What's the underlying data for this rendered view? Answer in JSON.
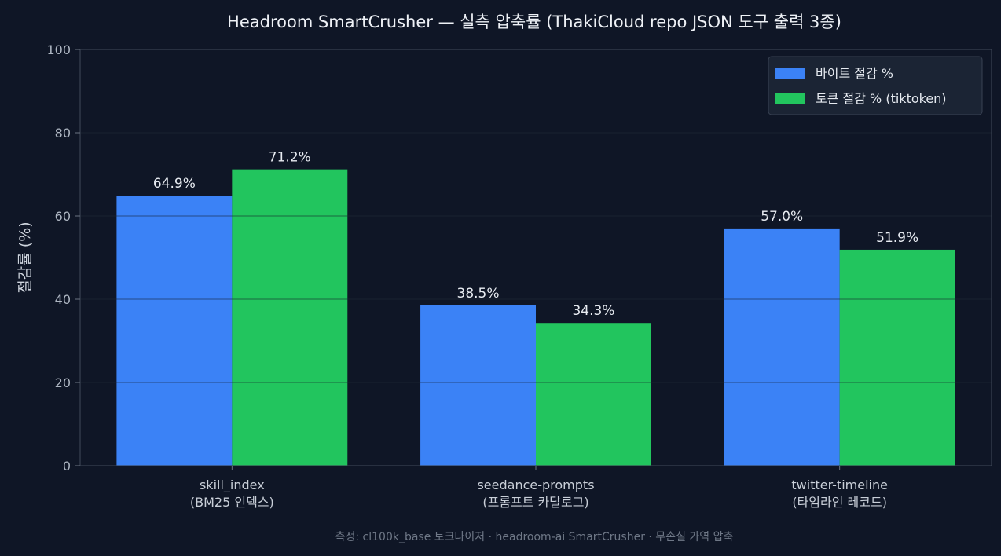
{
  "chart_data": {
    "type": "bar",
    "title": "Headroom SmartCrusher — 실측 압축률 (ThakiCloud repo JSON 도구 출력 3종)",
    "ylabel": "절감률 (%)",
    "xlabel": "",
    "ylim": [
      0,
      100
    ],
    "yticks": [
      0,
      20,
      40,
      60,
      80,
      100
    ],
    "grid": true,
    "legend_position": "top-right",
    "categories": [
      [
        "skill_index",
        "(BM25 인덱스)"
      ],
      [
        "seedance-prompts",
        "(프롬프트 카탈로그)"
      ],
      [
        "twitter-timeline",
        "(타임라인 레코드)"
      ]
    ],
    "series": [
      {
        "name": "바이트 절감 %",
        "color": "#3b82f6",
        "values": [
          64.9,
          38.5,
          57.0
        ],
        "labels": [
          "64.9%",
          "38.5%",
          "57.0%"
        ]
      },
      {
        "name": "토큰 절감 % (tiktoken)",
        "color": "#22c55e",
        "values": [
          71.2,
          34.3,
          51.9
        ],
        "labels": [
          "71.2%",
          "34.3%",
          "51.9%"
        ]
      }
    ],
    "footnote": "측정: cl100k_base 토크나이저 · headroom-ai SmartCrusher · 무손실 가역 압축"
  }
}
